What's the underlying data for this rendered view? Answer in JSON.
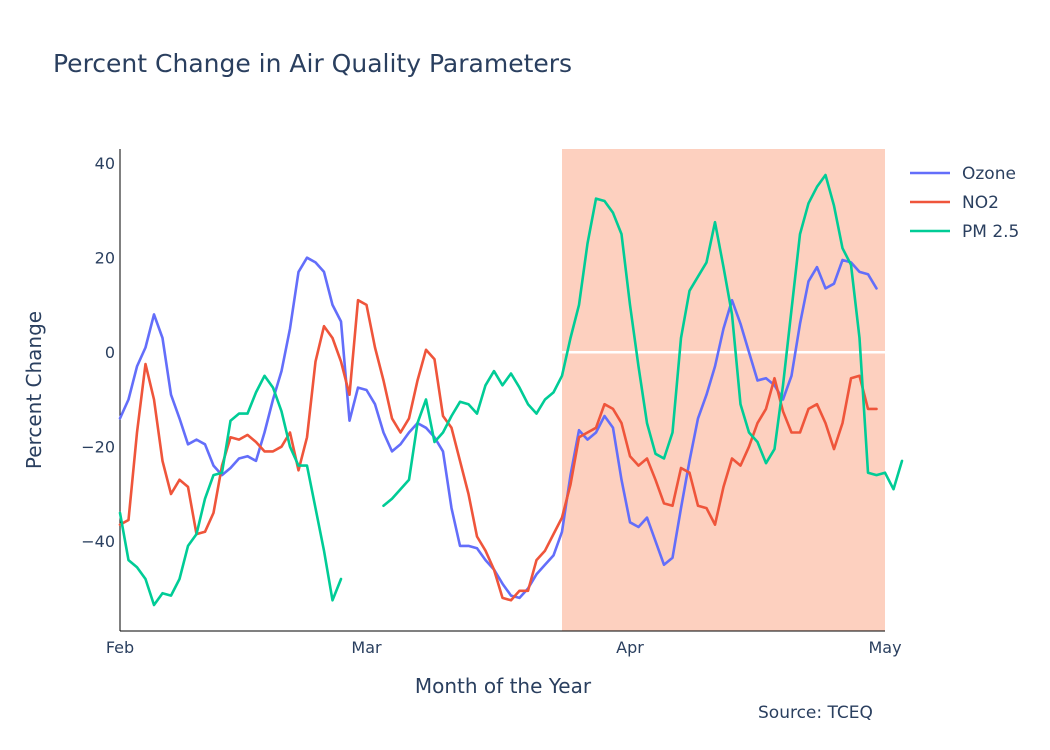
{
  "chart_data": {
    "type": "line",
    "title": "Percent Change in Air Quality Parameters",
    "xlabel": "Month of the Year",
    "ylabel": "Percent Change",
    "annotation": "Source: TCEQ",
    "x_range_days": [
      0,
      89
    ],
    "xlim": [
      "2020-02-01",
      "2020-05-01"
    ],
    "ylim": [
      -59,
      43
    ],
    "x_ticks": [
      {
        "label": "Feb",
        "date": "2020-02-01"
      },
      {
        "label": "Mar",
        "date": "2020-03-01"
      },
      {
        "label": "Apr",
        "date": "2020-04-01"
      },
      {
        "label": "May",
        "date": "2020-05-01"
      }
    ],
    "y_ticks": [
      40,
      20,
      0,
      -20,
      -40
    ],
    "grid": false,
    "legend": "top-right",
    "shaded_region": {
      "start": "2020-03-24",
      "end": "2020-05-01",
      "color": "#fdd0bf"
    },
    "zero_line_in_region": 0,
    "series": [
      {
        "name": "Ozone",
        "color": "#636efa",
        "points": [
          [
            "2020-02-01",
            -14
          ],
          [
            "2020-02-02",
            -10
          ],
          [
            "2020-02-03",
            -3
          ],
          [
            "2020-02-04",
            1
          ],
          [
            "2020-02-05",
            8
          ],
          [
            "2020-02-06",
            3
          ],
          [
            "2020-02-07",
            -9
          ],
          [
            "2020-02-08",
            -14
          ],
          [
            "2020-02-09",
            -19.5
          ],
          [
            "2020-02-10",
            -18.5
          ],
          [
            "2020-02-11",
            -19.5
          ],
          [
            "2020-02-12",
            -24
          ],
          [
            "2020-02-13",
            -26
          ],
          [
            "2020-02-14",
            -24.5
          ],
          [
            "2020-02-15",
            -22.5
          ],
          [
            "2020-02-16",
            -22
          ],
          [
            "2020-02-17",
            -23
          ],
          [
            "2020-02-18",
            -17
          ],
          [
            "2020-02-19",
            -10
          ],
          [
            "2020-02-20",
            -4
          ],
          [
            "2020-02-21",
            5
          ],
          [
            "2020-02-22",
            17
          ],
          [
            "2020-02-23",
            20
          ],
          [
            "2020-02-24",
            19
          ],
          [
            "2020-02-25",
            17
          ],
          [
            "2020-02-26",
            10
          ],
          [
            "2020-02-27",
            6.5
          ],
          [
            "2020-02-28",
            -14.5
          ],
          [
            "2020-02-29",
            -7.5
          ],
          [
            "2020-03-01",
            -8
          ],
          [
            "2020-03-02",
            -11
          ],
          [
            "2020-03-03",
            -17
          ],
          [
            "2020-03-04",
            -21
          ],
          [
            "2020-03-05",
            -19.5
          ],
          [
            "2020-03-06",
            -17
          ],
          [
            "2020-03-07",
            -15
          ],
          [
            "2020-03-08",
            -16
          ],
          [
            "2020-03-09",
            -18
          ],
          [
            "2020-03-10",
            -21
          ],
          [
            "2020-03-11",
            -33
          ],
          [
            "2020-03-12",
            -41
          ],
          [
            "2020-03-13",
            -41
          ],
          [
            "2020-03-14",
            -41.5
          ],
          [
            "2020-03-15",
            -44
          ],
          [
            "2020-03-16",
            -46
          ],
          [
            "2020-03-17",
            -49
          ],
          [
            "2020-03-18",
            -51.5
          ],
          [
            "2020-03-19",
            -52
          ],
          [
            "2020-03-20",
            -50
          ],
          [
            "2020-03-21",
            -47
          ],
          [
            "2020-03-22",
            -45
          ],
          [
            "2020-03-23",
            -43
          ],
          [
            "2020-03-24",
            -38
          ],
          [
            "2020-03-25",
            -26
          ],
          [
            "2020-03-26",
            -16.5
          ],
          [
            "2020-03-27",
            -18.5
          ],
          [
            "2020-03-28",
            -17
          ],
          [
            "2020-03-29",
            -13.5
          ],
          [
            "2020-03-30",
            -16
          ],
          [
            "2020-03-31",
            -27
          ],
          [
            "2020-04-01",
            -36
          ],
          [
            "2020-04-02",
            -37
          ],
          [
            "2020-04-03",
            -35
          ],
          [
            "2020-04-04",
            -40
          ],
          [
            "2020-04-05",
            -45
          ],
          [
            "2020-04-06",
            -43.5
          ],
          [
            "2020-04-07",
            -33
          ],
          [
            "2020-04-08",
            -23
          ],
          [
            "2020-04-09",
            -14
          ],
          [
            "2020-04-10",
            -9
          ],
          [
            "2020-04-11",
            -3
          ],
          [
            "2020-04-12",
            5
          ],
          [
            "2020-04-13",
            11
          ],
          [
            "2020-04-14",
            6
          ],
          [
            "2020-04-15",
            0
          ],
          [
            "2020-04-16",
            -6
          ],
          [
            "2020-04-17",
            -5.5
          ],
          [
            "2020-04-18",
            -7
          ],
          [
            "2020-04-19",
            -10
          ],
          [
            "2020-04-20",
            -5
          ],
          [
            "2020-04-21",
            6
          ],
          [
            "2020-04-22",
            15
          ],
          [
            "2020-04-23",
            18
          ],
          [
            "2020-04-24",
            13.5
          ],
          [
            "2020-04-25",
            14.5
          ],
          [
            "2020-04-26",
            19.5
          ],
          [
            "2020-04-27",
            19
          ],
          [
            "2020-04-28",
            17
          ],
          [
            "2020-04-29",
            16.5
          ],
          [
            "2020-04-30",
            13.5
          ]
        ]
      },
      {
        "name": "NO2",
        "color": "#ef553b",
        "points": [
          [
            "2020-02-01",
            -36.5
          ],
          [
            "2020-02-02",
            -35.5
          ],
          [
            "2020-02-03",
            -17
          ],
          [
            "2020-02-04",
            -2.5
          ],
          [
            "2020-02-05",
            -10
          ],
          [
            "2020-02-06",
            -23
          ],
          [
            "2020-02-07",
            -30
          ],
          [
            "2020-02-08",
            -27
          ],
          [
            "2020-02-09",
            -28.5
          ],
          [
            "2020-02-10",
            -38.5
          ],
          [
            "2020-02-11",
            -38
          ],
          [
            "2020-02-12",
            -34
          ],
          [
            "2020-02-13",
            -24
          ],
          [
            "2020-02-14",
            -18
          ],
          [
            "2020-02-15",
            -18.5
          ],
          [
            "2020-02-16",
            -17.5
          ],
          [
            "2020-02-17",
            -19
          ],
          [
            "2020-02-18",
            -21
          ],
          [
            "2020-02-19",
            -21
          ],
          [
            "2020-02-20",
            -20
          ],
          [
            "2020-02-21",
            -17
          ],
          [
            "2020-02-22",
            -25
          ],
          [
            "2020-02-23",
            -18
          ],
          [
            "2020-02-24",
            -2
          ],
          [
            "2020-02-25",
            5.5
          ],
          [
            "2020-02-26",
            3
          ],
          [
            "2020-02-27",
            -2
          ],
          [
            "2020-02-28",
            -9
          ],
          [
            "2020-02-29",
            11
          ],
          [
            "2020-03-01",
            10
          ],
          [
            "2020-03-02",
            1
          ],
          [
            "2020-03-03",
            -6
          ],
          [
            "2020-03-04",
            -14
          ],
          [
            "2020-03-05",
            -17
          ],
          [
            "2020-03-06",
            -14
          ],
          [
            "2020-03-07",
            -6
          ],
          [
            "2020-03-08",
            0.5
          ],
          [
            "2020-03-09",
            -1.5
          ],
          [
            "2020-03-10",
            -13.5
          ],
          [
            "2020-03-11",
            -16
          ],
          [
            "2020-03-12",
            -23
          ],
          [
            "2020-03-13",
            -30
          ],
          [
            "2020-03-14",
            -39
          ],
          [
            "2020-03-15",
            -42
          ],
          [
            "2020-03-16",
            -46
          ],
          [
            "2020-03-17",
            -52
          ],
          [
            "2020-03-18",
            -52.5
          ],
          [
            "2020-03-19",
            -50.5
          ],
          [
            "2020-03-20",
            -50.5
          ],
          [
            "2020-03-21",
            -44
          ],
          [
            "2020-03-22",
            -42
          ],
          [
            "2020-03-23",
            -38.5
          ],
          [
            "2020-03-24",
            -35
          ],
          [
            "2020-03-25",
            -28
          ],
          [
            "2020-03-26",
            -18
          ],
          [
            "2020-03-27",
            -17
          ],
          [
            "2020-03-28",
            -16
          ],
          [
            "2020-03-29",
            -11
          ],
          [
            "2020-03-30",
            -12
          ],
          [
            "2020-03-31",
            -15
          ],
          [
            "2020-04-01",
            -22
          ],
          [
            "2020-04-02",
            -24
          ],
          [
            "2020-04-03",
            -22.5
          ],
          [
            "2020-04-04",
            -27
          ],
          [
            "2020-04-05",
            -32
          ],
          [
            "2020-04-06",
            -32.5
          ],
          [
            "2020-04-07",
            -24.5
          ],
          [
            "2020-04-08",
            -25.5
          ],
          [
            "2020-04-09",
            -32.5
          ],
          [
            "2020-04-10",
            -33
          ],
          [
            "2020-04-11",
            -36.5
          ],
          [
            "2020-04-12",
            -28.5
          ],
          [
            "2020-04-13",
            -22.5
          ],
          [
            "2020-04-14",
            -24
          ],
          [
            "2020-04-15",
            -20
          ],
          [
            "2020-04-16",
            -15
          ],
          [
            "2020-04-17",
            -12
          ],
          [
            "2020-04-18",
            -5.5
          ],
          [
            "2020-04-19",
            -12.5
          ],
          [
            "2020-04-20",
            -17
          ],
          [
            "2020-04-21",
            -17
          ],
          [
            "2020-04-22",
            -12
          ],
          [
            "2020-04-23",
            -11
          ],
          [
            "2020-04-24",
            -15
          ],
          [
            "2020-04-25",
            -20.5
          ],
          [
            "2020-04-26",
            -15
          ],
          [
            "2020-04-27",
            -5.5
          ],
          [
            "2020-04-28",
            -5
          ],
          [
            "2020-04-29",
            -12
          ],
          [
            "2020-04-30",
            -12
          ]
        ]
      },
      {
        "name": "PM 2.5",
        "color": "#00cc96",
        "points": [
          [
            "2020-02-01",
            -34
          ],
          [
            "2020-02-02",
            -44
          ],
          [
            "2020-02-03",
            -45.5
          ],
          [
            "2020-02-04",
            -48
          ],
          [
            "2020-02-05",
            -53.5
          ],
          [
            "2020-02-06",
            -51
          ],
          [
            "2020-02-07",
            -51.5
          ],
          [
            "2020-02-08",
            -48
          ],
          [
            "2020-02-09",
            -41
          ],
          [
            "2020-02-10",
            -38.5
          ],
          [
            "2020-02-11",
            -31
          ],
          [
            "2020-02-12",
            -26
          ],
          [
            "2020-02-13",
            -25.5
          ],
          [
            "2020-02-14",
            -14.5
          ],
          [
            "2020-02-15",
            -13
          ],
          [
            "2020-02-16",
            -13
          ],
          [
            "2020-02-17",
            -8.5
          ],
          [
            "2020-02-18",
            -5
          ],
          [
            "2020-02-19",
            -7.5
          ],
          [
            "2020-02-20",
            -12.5
          ],
          [
            "2020-02-21",
            -20
          ],
          [
            "2020-02-22",
            -24
          ],
          [
            "2020-02-23",
            -24
          ],
          [
            "2020-02-24",
            -33
          ],
          [
            "2020-02-25",
            -42
          ],
          [
            "2020-02-26",
            -52.5
          ],
          [
            "2020-02-27",
            -48
          ],
          null,
          null,
          null,
          [
            "2020-03-03",
            -32.5
          ],
          [
            "2020-03-04",
            -31
          ],
          [
            "2020-03-05",
            -29
          ],
          [
            "2020-03-06",
            -27
          ],
          [
            "2020-03-07",
            -15
          ],
          [
            "2020-03-08",
            -10
          ],
          [
            "2020-03-09",
            -19
          ],
          [
            "2020-03-10",
            -17
          ],
          [
            "2020-03-11",
            -13.5
          ],
          [
            "2020-03-12",
            -10.5
          ],
          [
            "2020-03-13",
            -11
          ],
          [
            "2020-03-14",
            -13
          ],
          [
            "2020-03-15",
            -7
          ],
          [
            "2020-03-16",
            -4
          ],
          [
            "2020-03-17",
            -7
          ],
          [
            "2020-03-18",
            -4.5
          ],
          [
            "2020-03-19",
            -7.5
          ],
          [
            "2020-03-20",
            -11
          ],
          [
            "2020-03-21",
            -13
          ],
          [
            "2020-03-22",
            -10
          ],
          [
            "2020-03-23",
            -8.5
          ],
          [
            "2020-03-24",
            -5
          ],
          [
            "2020-03-25",
            3
          ],
          [
            "2020-03-26",
            10
          ],
          [
            "2020-03-27",
            23
          ],
          [
            "2020-03-28",
            32.5
          ],
          [
            "2020-03-29",
            32
          ],
          [
            "2020-03-30",
            29.5
          ],
          [
            "2020-03-31",
            25
          ],
          [
            "2020-04-01",
            10
          ],
          [
            "2020-04-02",
            -3
          ],
          [
            "2020-04-03",
            -15
          ],
          [
            "2020-04-04",
            -21.5
          ],
          [
            "2020-04-05",
            -22.5
          ],
          [
            "2020-04-06",
            -17
          ],
          [
            "2020-04-07",
            3
          ],
          [
            "2020-04-08",
            13
          ],
          [
            "2020-04-09",
            16
          ],
          [
            "2020-04-10",
            19
          ],
          [
            "2020-04-11",
            27.5
          ],
          [
            "2020-04-12",
            18
          ],
          [
            "2020-04-13",
            8
          ],
          [
            "2020-04-14",
            -11
          ],
          [
            "2020-04-15",
            -17
          ],
          [
            "2020-04-16",
            -19
          ],
          [
            "2020-04-17",
            -23.5
          ],
          [
            "2020-04-18",
            -20.5
          ],
          [
            "2020-04-19",
            -7
          ],
          [
            "2020-04-20",
            9
          ],
          [
            "2020-04-21",
            25
          ],
          [
            "2020-04-22",
            31.5
          ],
          [
            "2020-04-23",
            35
          ],
          [
            "2020-04-24",
            37.5
          ],
          [
            "2020-04-25",
            31
          ],
          [
            "2020-04-26",
            22
          ],
          [
            "2020-04-27",
            18.5
          ],
          [
            "2020-04-28",
            3
          ],
          [
            "2020-04-29",
            -25.5
          ],
          [
            "2020-04-30",
            -26
          ],
          [
            "2020-05-01",
            -25.5
          ],
          [
            "2020-05-02",
            -29
          ],
          [
            "2020-05-03",
            -23
          ]
        ]
      }
    ]
  }
}
